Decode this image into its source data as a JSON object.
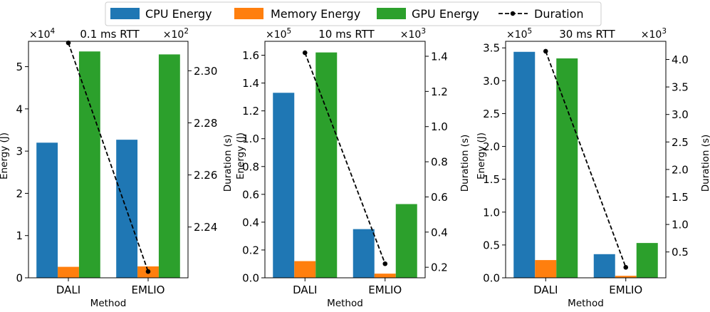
{
  "legend": {
    "items": [
      {
        "label": "CPU Energy",
        "color": "#1f77b4",
        "kind": "patch"
      },
      {
        "label": "Memory Energy",
        "color": "#ff7f0e",
        "kind": "patch"
      },
      {
        "label": "GPU Energy",
        "color": "#2ca02c",
        "kind": "patch"
      },
      {
        "label": "Duration",
        "color": "#000000",
        "kind": "line"
      }
    ]
  },
  "chart_data": [
    {
      "type": "bar",
      "title": "0.1 ms RTT",
      "xlabel": "Method",
      "ylabel": "Energy (J)",
      "y2label": "Duration (s)",
      "categories": [
        "DALI",
        "EMLIO"
      ],
      "left_multiplier": "×10",
      "left_exponent": "4",
      "right_multiplier": "×10",
      "right_exponent": "2",
      "ylim": [
        0,
        5.6
      ],
      "yticks": [
        0,
        1,
        2,
        3,
        4,
        5
      ],
      "ytick_labels": [
        "0",
        "1",
        "2",
        "3",
        "4",
        "5"
      ],
      "y2lim": [
        2.2205,
        2.3113
      ],
      "y2ticks": [
        2.24,
        2.26,
        2.28,
        2.3
      ],
      "y2tick_labels": [
        "2.24",
        "2.26",
        "2.28",
        "2.30"
      ],
      "series": [
        {
          "name": "CPU Energy",
          "values": [
            3.2,
            3.27
          ]
        },
        {
          "name": "Memory Energy",
          "values": [
            0.26,
            0.27
          ]
        },
        {
          "name": "GPU Energy",
          "values": [
            5.36,
            5.29
          ]
        }
      ],
      "duration": {
        "name": "Duration",
        "values": [
          2.3107,
          2.2229
        ]
      }
    },
    {
      "type": "bar",
      "title": "10 ms RTT",
      "xlabel": "Method",
      "ylabel": "Energy (J)",
      "y2label": "Duration (s)",
      "categories": [
        "DALI",
        "EMLIO"
      ],
      "left_multiplier": "×10",
      "left_exponent": "5",
      "right_multiplier": "×10",
      "right_exponent": "3",
      "ylim": [
        0,
        1.7
      ],
      "yticks": [
        0,
        0.2,
        0.4,
        0.6,
        0.8,
        1.0,
        1.2,
        1.4,
        1.6
      ],
      "ytick_labels": [
        "0.0",
        "0.2",
        "0.4",
        "0.6",
        "0.8",
        "1.0",
        "1.2",
        "1.4",
        "1.6"
      ],
      "y2lim": [
        0.14,
        1.485
      ],
      "y2ticks": [
        0.2,
        0.4,
        0.6,
        0.8,
        1.0,
        1.2,
        1.4
      ],
      "y2tick_labels": [
        "0.2",
        "0.4",
        "0.6",
        "0.8",
        "1.0",
        "1.2",
        "1.4"
      ],
      "series": [
        {
          "name": "CPU Energy",
          "values": [
            1.33,
            0.35
          ]
        },
        {
          "name": "Memory Energy",
          "values": [
            0.12,
            0.03
          ]
        },
        {
          "name": "GPU Energy",
          "values": [
            1.62,
            0.53
          ]
        }
      ],
      "duration": {
        "name": "Duration",
        "values": [
          1.42,
          0.22
        ]
      }
    },
    {
      "type": "bar",
      "title": "30 ms RTT",
      "xlabel": "Method",
      "ylabel": "Energy (J)",
      "y2label": "Duration (s)",
      "categories": [
        "DALI",
        "EMLIO"
      ],
      "left_multiplier": "×10",
      "left_exponent": "5",
      "right_multiplier": "×10",
      "right_exponent": "3",
      "ylim": [
        0,
        3.6
      ],
      "yticks": [
        0,
        0.5,
        1.0,
        1.5,
        2.0,
        2.5,
        3.0,
        3.5
      ],
      "ytick_labels": [
        "0.0",
        "0.5",
        "1.0",
        "1.5",
        "2.0",
        "2.5",
        "3.0",
        "3.5"
      ],
      "y2lim": [
        0.03,
        4.33
      ],
      "y2ticks": [
        0.5,
        1.0,
        1.5,
        2.0,
        2.5,
        3.0,
        3.5,
        4.0
      ],
      "y2tick_labels": [
        "0.5",
        "1.0",
        "1.5",
        "2.0",
        "2.5",
        "3.0",
        "3.5",
        "4.0"
      ],
      "series": [
        {
          "name": "CPU Energy",
          "values": [
            3.44,
            0.36
          ]
        },
        {
          "name": "Memory Energy",
          "values": [
            0.27,
            0.03
          ]
        },
        {
          "name": "GPU Energy",
          "values": [
            3.34,
            0.53
          ]
        }
      ],
      "duration": {
        "name": "Duration",
        "values": [
          4.15,
          0.22
        ]
      }
    }
  ]
}
